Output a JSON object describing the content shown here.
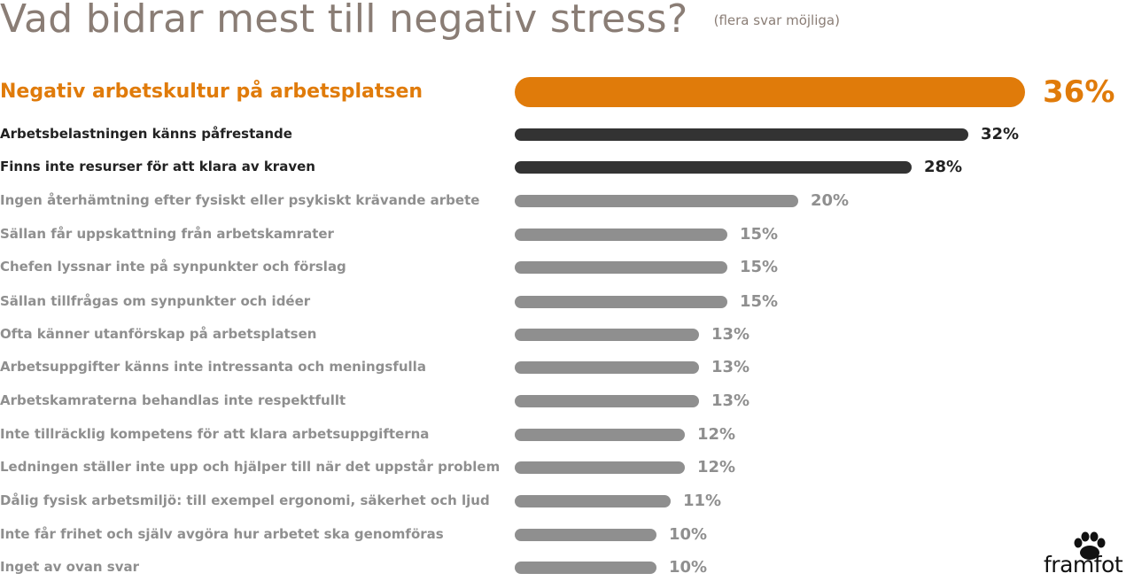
{
  "title": "Vad bidrar mest till negativ stress?",
  "subtitle": "(flera svar möjliga)",
  "colors": {
    "highlight": "#e07b0a",
    "dark": "#333333",
    "grey": "#8f8f8f",
    "title": "#8a7d75"
  },
  "logo": {
    "text": "framfot",
    "icon": "paw-print-icon"
  },
  "chart_data": {
    "type": "bar",
    "orientation": "horizontal",
    "unit": "%",
    "categories": [
      "Negativ arbetskultur på arbetsplatsen",
      "Arbetsbelastningen känns påfrestande",
      "Finns inte resurser för att klara av kraven",
      "Ingen återhämtning efter fysiskt eller psykiskt krävande arbete",
      "Sällan får uppskattning från arbetskamrater",
      "Chefen lyssnar inte på synpunkter och förslag",
      "Sällan tillfrågas om synpunkter och idéer",
      "Ofta känner utanförskap på arbetsplatsen",
      "Arbetsuppgifter känns inte intressanta och meningsfulla",
      "Arbetskamraterna behandlas inte respektfullt",
      "Inte tillräcklig kompetens för att klara arbetsuppgifterna",
      "Ledningen ställer inte upp och hjälper till när det uppstår problem",
      "Dålig fysisk arbetsmiljö: till exempel ergonomi, säkerhet och ljud",
      "Inte får frihet och själv avgöra hur arbetet ska genomföras",
      "Inget av ovan svar"
    ],
    "values": [
      36,
      32,
      28,
      20,
      15,
      15,
      15,
      13,
      13,
      13,
      12,
      12,
      11,
      10,
      10
    ],
    "value_labels": [
      "36%",
      "32%",
      "28%",
      "20%",
      "15%",
      "15%",
      "15%",
      "13%",
      "13%",
      "13%",
      "12%",
      "12%",
      "11%",
      "10%",
      "10%"
    ],
    "emphasis": [
      "highlight",
      "dark",
      "dark",
      "grey",
      "grey",
      "grey",
      "grey",
      "grey",
      "grey",
      "grey",
      "grey",
      "grey",
      "grey",
      "grey",
      "grey"
    ]
  }
}
